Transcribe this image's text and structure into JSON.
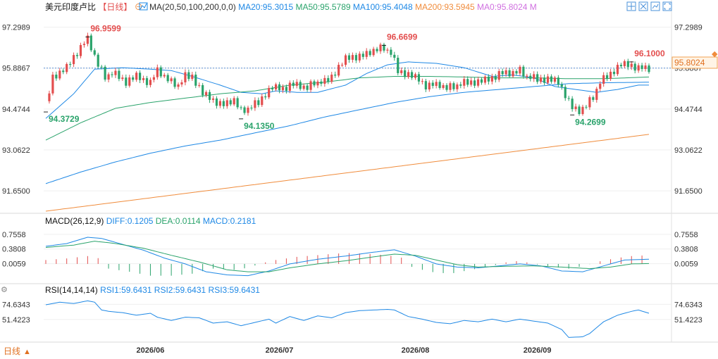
{
  "chart_data": [
    {
      "type": "candlestick",
      "title": "美元印度卢比",
      "period": "【日线】",
      "settings_glyph": "⊖",
      "indicator": "MA(20,50,100,200,0,0)",
      "ma_labels": [
        {
          "name": "MA20",
          "value": "95.3015",
          "color": "#1e88e5"
        },
        {
          "name": "MA50",
          "value": "95.5789",
          "color": "#2aa36b"
        },
        {
          "name": "MA100",
          "value": "95.4048",
          "color": "#1e88e5"
        },
        {
          "name": "MA200",
          "value": "93.5945",
          "color": "#f08c3c"
        },
        {
          "name": "MA0",
          "value": "95.8024",
          "color": "#d070e0"
        },
        {
          "name": "M",
          "value": "",
          "color": "#d070e0"
        }
      ],
      "y_ticks": [
        "97.2989",
        "95.8867",
        "94.4744",
        "93.0622",
        "91.6500"
      ],
      "ylim": [
        90.95,
        97.75
      ],
      "current_price": "95.8024",
      "ref_price": 95.8867,
      "annotations": [
        {
          "text": "96.9599",
          "kind": "high",
          "value": 96.9599,
          "index": 12
        },
        {
          "text": "94.3729",
          "kind": "low",
          "value": 94.3729,
          "index": 0
        },
        {
          "text": "94.1350",
          "kind": "low",
          "value": 94.135,
          "index": 56
        },
        {
          "text": "96.6699",
          "kind": "high",
          "value": 96.6699,
          "index": 97
        },
        {
          "text": "94.2699",
          "kind": "low",
          "value": 94.2699,
          "index": 151
        },
        {
          "text": "96.1000",
          "kind": "high",
          "value": 96.1,
          "index": 168
        }
      ],
      "x_dates": [
        {
          "label": "2026/06",
          "index": 30
        },
        {
          "label": "2026/07",
          "index": 67
        },
        {
          "label": "2026/08",
          "index": 106
        },
        {
          "label": "2026/09",
          "index": 141
        }
      ],
      "candles": {
        "knots": [
          [
            0,
            94.6
          ],
          [
            2,
            95.6
          ],
          [
            4,
            95.7
          ],
          [
            6,
            95.9
          ],
          [
            8,
            96.3
          ],
          [
            10,
            96.6
          ],
          [
            12,
            96.9
          ],
          [
            13,
            96.6
          ],
          [
            15,
            96.0
          ],
          [
            17,
            95.6
          ],
          [
            19,
            95.7
          ],
          [
            21,
            95.6
          ],
          [
            23,
            95.4
          ],
          [
            26,
            95.6
          ],
          [
            28,
            95.5
          ],
          [
            30,
            95.4
          ],
          [
            32,
            95.8
          ],
          [
            34,
            95.6
          ],
          [
            36,
            95.4
          ],
          [
            38,
            95.3
          ],
          [
            40,
            95.6
          ],
          [
            42,
            95.6
          ],
          [
            45,
            95.0
          ],
          [
            48,
            94.8
          ],
          [
            51,
            94.6
          ],
          [
            54,
            94.8
          ],
          [
            56,
            94.4
          ],
          [
            58,
            94.5
          ],
          [
            61,
            94.7
          ],
          [
            63,
            95.0
          ],
          [
            65,
            95.2
          ],
          [
            68,
            95.2
          ],
          [
            70,
            95.3
          ],
          [
            72,
            95.3
          ],
          [
            75,
            95.2
          ],
          [
            77,
            95.4
          ],
          [
            80,
            95.4
          ],
          [
            82,
            95.6
          ],
          [
            84,
            95.9
          ],
          [
            86,
            96.2
          ],
          [
            88,
            96.3
          ],
          [
            91,
            96.3
          ],
          [
            94,
            96.5
          ],
          [
            97,
            96.6
          ],
          [
            99,
            96.4
          ],
          [
            101,
            95.8
          ],
          [
            103,
            95.7
          ],
          [
            105,
            95.6
          ],
          [
            107,
            95.5
          ],
          [
            109,
            95.3
          ],
          [
            111,
            95.3
          ],
          [
            113,
            95.3
          ],
          [
            115,
            95.2
          ],
          [
            118,
            95.3
          ],
          [
            121,
            95.4
          ],
          [
            124,
            95.4
          ],
          [
            127,
            95.5
          ],
          [
            130,
            95.7
          ],
          [
            133,
            95.7
          ],
          [
            136,
            95.8
          ],
          [
            138,
            95.6
          ],
          [
            141,
            95.5
          ],
          [
            144,
            95.5
          ],
          [
            147,
            95.4
          ],
          [
            149,
            95.0
          ],
          [
            151,
            94.5
          ],
          [
            153,
            94.4
          ],
          [
            155,
            94.6
          ],
          [
            157,
            94.9
          ],
          [
            159,
            95.4
          ],
          [
            161,
            95.6
          ],
          [
            163,
            95.8
          ],
          [
            165,
            96.0
          ],
          [
            168,
            96.0
          ],
          [
            170,
            95.9
          ],
          [
            173,
            95.85
          ]
        ],
        "wiggle": [
          0.26,
          -0.16,
          0.11,
          -0.22,
          0.18,
          -0.09,
          0.23,
          -0.14,
          0.07,
          -0.27,
          0.15,
          -0.05,
          0.2,
          -0.18,
          0.09,
          -0.12,
          0.24,
          -0.2,
          0.04,
          -0.1
        ]
      },
      "ma_knots": {
        "ma20": [
          [
            0,
            94.15
          ],
          [
            8,
            95.0
          ],
          [
            14,
            95.85
          ],
          [
            22,
            95.9
          ],
          [
            30,
            95.85
          ],
          [
            36,
            95.8
          ],
          [
            42,
            95.6
          ],
          [
            50,
            95.3
          ],
          [
            56,
            95.05
          ],
          [
            62,
            95.0
          ],
          [
            66,
            95.1
          ],
          [
            72,
            95.05
          ],
          [
            78,
            95.05
          ],
          [
            86,
            95.3
          ],
          [
            92,
            95.7
          ],
          [
            98,
            96.0
          ],
          [
            104,
            96.1
          ],
          [
            112,
            96.05
          ],
          [
            120,
            95.9
          ],
          [
            128,
            95.6
          ],
          [
            134,
            95.65
          ],
          [
            140,
            95.55
          ],
          [
            146,
            95.25
          ],
          [
            152,
            95.15
          ],
          [
            158,
            95.05
          ],
          [
            164,
            95.15
          ],
          [
            170,
            95.3
          ],
          [
            173,
            95.3
          ]
        ],
        "ma50": [
          [
            0,
            93.4
          ],
          [
            10,
            94.0
          ],
          [
            20,
            94.5
          ],
          [
            30,
            94.7
          ],
          [
            40,
            94.85
          ],
          [
            50,
            95.0
          ],
          [
            60,
            95.1
          ],
          [
            70,
            95.3
          ],
          [
            80,
            95.4
          ],
          [
            90,
            95.55
          ],
          [
            100,
            95.6
          ],
          [
            110,
            95.6
          ],
          [
            120,
            95.58
          ],
          [
            130,
            95.55
          ],
          [
            140,
            95.55
          ],
          [
            150,
            95.52
          ],
          [
            160,
            95.52
          ],
          [
            173,
            95.58
          ]
        ],
        "ma100": [
          [
            0,
            91.9
          ],
          [
            10,
            92.3
          ],
          [
            20,
            92.65
          ],
          [
            30,
            92.95
          ],
          [
            40,
            93.2
          ],
          [
            50,
            93.4
          ],
          [
            60,
            93.65
          ],
          [
            70,
            93.9
          ],
          [
            80,
            94.2
          ],
          [
            90,
            94.45
          ],
          [
            100,
            94.7
          ],
          [
            110,
            94.9
          ],
          [
            120,
            95.05
          ],
          [
            130,
            95.15
          ],
          [
            140,
            95.25
          ],
          [
            150,
            95.35
          ],
          [
            160,
            95.38
          ],
          [
            173,
            95.4
          ]
        ],
        "ma200": [
          [
            0,
            90.95
          ],
          [
            173,
            93.6
          ]
        ]
      }
    },
    {
      "type": "macd",
      "title": "MACD(26,12,9)",
      "labels": [
        {
          "name": "DIFF",
          "value": "0.1205",
          "color": "#1e88e5"
        },
        {
          "name": "DEA",
          "value": "0.0114",
          "color": "#2aa36b"
        },
        {
          "name": "MACD",
          "value": "0.2181",
          "color": "#1e88e5"
        }
      ],
      "y_ticks": [
        "0.7558",
        "0.3808",
        "0.0059"
      ],
      "ylim": [
        -0.45,
        0.95
      ],
      "diff_knots": [
        [
          0,
          0.45
        ],
        [
          6,
          0.52
        ],
        [
          12,
          0.68
        ],
        [
          16,
          0.65
        ],
        [
          22,
          0.5
        ],
        [
          28,
          0.35
        ],
        [
          34,
          0.15
        ],
        [
          40,
          0.0
        ],
        [
          46,
          -0.2
        ],
        [
          52,
          -0.28
        ],
        [
          58,
          -0.3
        ],
        [
          64,
          -0.18
        ],
        [
          70,
          0.0
        ],
        [
          78,
          0.12
        ],
        [
          86,
          0.2
        ],
        [
          94,
          0.3
        ],
        [
          100,
          0.36
        ],
        [
          106,
          0.2
        ],
        [
          112,
          0.0
        ],
        [
          118,
          -0.08
        ],
        [
          124,
          -0.1
        ],
        [
          130,
          -0.05
        ],
        [
          136,
          0.0
        ],
        [
          142,
          -0.05
        ],
        [
          148,
          -0.18
        ],
        [
          154,
          -0.2
        ],
        [
          160,
          -0.05
        ],
        [
          166,
          0.1
        ],
        [
          173,
          0.12
        ]
      ],
      "dea_knots": [
        [
          0,
          0.42
        ],
        [
          8,
          0.48
        ],
        [
          14,
          0.58
        ],
        [
          20,
          0.52
        ],
        [
          28,
          0.4
        ],
        [
          36,
          0.22
        ],
        [
          44,
          0.05
        ],
        [
          52,
          -0.15
        ],
        [
          58,
          -0.2
        ],
        [
          64,
          -0.2
        ],
        [
          70,
          -0.1
        ],
        [
          78,
          0.0
        ],
        [
          86,
          0.08
        ],
        [
          94,
          0.18
        ],
        [
          100,
          0.25
        ],
        [
          106,
          0.22
        ],
        [
          112,
          0.1
        ],
        [
          118,
          -0.02
        ],
        [
          124,
          -0.08
        ],
        [
          132,
          -0.06
        ],
        [
          140,
          -0.05
        ],
        [
          148,
          -0.08
        ],
        [
          156,
          -0.12
        ],
        [
          162,
          -0.08
        ],
        [
          168,
          0.0
        ],
        [
          173,
          0.01
        ]
      ],
      "hist_knots": [
        [
          0,
          0.1
        ],
        [
          6,
          0.14
        ],
        [
          12,
          0.2
        ],
        [
          16,
          0.13
        ],
        [
          18,
          -0.12
        ],
        [
          24,
          -0.2
        ],
        [
          30,
          -0.3
        ],
        [
          36,
          -0.3
        ],
        [
          42,
          -0.25
        ],
        [
          48,
          -0.12
        ],
        [
          54,
          -0.15
        ],
        [
          58,
          -0.1
        ],
        [
          62,
          0.02
        ],
        [
          66,
          0.1
        ],
        [
          72,
          0.18
        ],
        [
          80,
          0.24
        ],
        [
          86,
          0.28
        ],
        [
          92,
          0.26
        ],
        [
          98,
          0.22
        ],
        [
          102,
          0.16
        ],
        [
          104,
          -0.05
        ],
        [
          110,
          -0.2
        ],
        [
          116,
          -0.25
        ],
        [
          122,
          -0.15
        ],
        [
          128,
          -0.05
        ],
        [
          132,
          0.04
        ],
        [
          136,
          0.08
        ],
        [
          140,
          0.0
        ],
        [
          146,
          -0.08
        ],
        [
          150,
          -0.12
        ],
        [
          154,
          -0.06
        ],
        [
          158,
          0.05
        ],
        [
          162,
          0.12
        ],
        [
          166,
          0.18
        ],
        [
          170,
          0.22
        ],
        [
          173,
          0.2
        ]
      ]
    },
    {
      "type": "rsi",
      "title": "RSI(14,14,14)",
      "labels": [
        {
          "name": "RSI1",
          "value": "59.6431",
          "color": "#1e88e5"
        },
        {
          "name": "RSI2",
          "value": "59.6431",
          "color": "#1e88e5"
        },
        {
          "name": "RSI3",
          "value": "59.6431",
          "color": "#1e88e5"
        }
      ],
      "y_ticks": [
        "74.6343",
        "51.4223"
      ],
      "ylim": [
        19,
        88
      ],
      "rsi_knots": [
        [
          0,
          74
        ],
        [
          4,
          78
        ],
        [
          8,
          76
        ],
        [
          12,
          80
        ],
        [
          14,
          78
        ],
        [
          16,
          66
        ],
        [
          18,
          64
        ],
        [
          22,
          62
        ],
        [
          26,
          58
        ],
        [
          30,
          61
        ],
        [
          32,
          55
        ],
        [
          36,
          50
        ],
        [
          40,
          55
        ],
        [
          44,
          54
        ],
        [
          48,
          46
        ],
        [
          52,
          48
        ],
        [
          56,
          42
        ],
        [
          60,
          47
        ],
        [
          64,
          52
        ],
        [
          66,
          46
        ],
        [
          70,
          56
        ],
        [
          74,
          50
        ],
        [
          78,
          57
        ],
        [
          82,
          54
        ],
        [
          86,
          62
        ],
        [
          90,
          65
        ],
        [
          94,
          66
        ],
        [
          98,
          67
        ],
        [
          100,
          66
        ],
        [
          104,
          56
        ],
        [
          108,
          52
        ],
        [
          112,
          47
        ],
        [
          116,
          45
        ],
        [
          120,
          50
        ],
        [
          124,
          48
        ],
        [
          128,
          52
        ],
        [
          132,
          48
        ],
        [
          136,
          52
        ],
        [
          140,
          49
        ],
        [
          144,
          46
        ],
        [
          148,
          36
        ],
        [
          150,
          24
        ],
        [
          154,
          25
        ],
        [
          156,
          30
        ],
        [
          160,
          48
        ],
        [
          164,
          58
        ],
        [
          168,
          64
        ],
        [
          170,
          66
        ],
        [
          173,
          61
        ]
      ]
    }
  ],
  "bottom_bar": {
    "period_label": "日线",
    "arrow": "▲"
  },
  "toolbar_icons": [
    "crosshair-icon",
    "expand-icon",
    "chart-icon",
    "fullscreen-icon"
  ]
}
